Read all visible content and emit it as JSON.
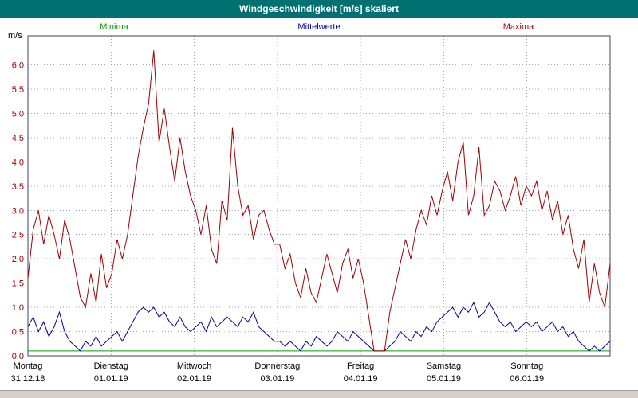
{
  "window": {
    "title": "Windgeschwindigkeit [m/s] skaliert"
  },
  "colors": {
    "title_bar": "#007070",
    "plot_border": "#404060",
    "grid": "#a0a0c0",
    "tick_label": "#a00000"
  },
  "chart_data": {
    "type": "line",
    "title": "Windgeschwindigkeit [m/s] skaliert",
    "unit_label": "m/s",
    "ylim": [
      0,
      6.6
    ],
    "grid": true,
    "legend_position": "top",
    "points_per_day": 16,
    "y_ticks": [
      {
        "value": 0.0,
        "label": "0,0"
      },
      {
        "value": 0.5,
        "label": "0,5"
      },
      {
        "value": 1.0,
        "label": "1,0"
      },
      {
        "value": 1.5,
        "label": "1,5"
      },
      {
        "value": 2.0,
        "label": "2,0"
      },
      {
        "value": 2.5,
        "label": "2,5"
      },
      {
        "value": 3.0,
        "label": "3,0"
      },
      {
        "value": 3.5,
        "label": "3,5"
      },
      {
        "value": 4.0,
        "label": "4,0"
      },
      {
        "value": 4.5,
        "label": "4,5"
      },
      {
        "value": 5.0,
        "label": "5,0"
      },
      {
        "value": 5.5,
        "label": "5,5"
      },
      {
        "value": 6.0,
        "label": "6,0"
      }
    ],
    "x_labels": [
      {
        "day": "Montag",
        "date": "31.12.18"
      },
      {
        "day": "Dienstag",
        "date": "01.01.19"
      },
      {
        "day": "Mittwoch",
        "date": "02.01.19"
      },
      {
        "day": "Donnerstag",
        "date": "03.01.19"
      },
      {
        "day": "Freitag",
        "date": "04.01.19"
      },
      {
        "day": "Samstag",
        "date": "05.01.19"
      },
      {
        "day": "Sonntag",
        "date": "06.01.19"
      }
    ],
    "series": [
      {
        "name": "Minima",
        "color": "#00a000",
        "values": [
          0.1,
          0.1,
          0.1,
          0.1,
          0.1,
          0.1,
          0.1,
          0.1,
          0.1,
          0.1,
          0.1,
          0.1,
          0.1,
          0.1,
          0.1,
          0.1,
          0.1,
          0.1,
          0.1,
          0.1,
          0.1,
          0.1,
          0.1,
          0.1,
          0.1,
          0.1,
          0.1,
          0.1,
          0.1,
          0.1,
          0.1,
          0.1,
          0.1,
          0.1,
          0.1,
          0.1,
          0.1,
          0.1,
          0.1,
          0.1,
          0.1,
          0.1,
          0.1,
          0.1,
          0.1,
          0.1,
          0.1,
          0.1,
          0.1,
          0.1,
          0.1,
          0.1,
          0.1,
          0.1,
          0.1,
          0.1,
          0.1,
          0.1,
          0.1,
          0.1,
          0.1,
          0.1,
          0.1,
          0.1,
          0.1,
          0.1,
          0.1,
          0.1,
          0.1,
          0.1,
          0.1,
          0.1,
          0.1,
          0.1,
          0.1,
          0.1,
          0.1,
          0.1,
          0.1,
          0.1,
          0.1,
          0.1,
          0.1,
          0.1,
          0.1,
          0.1,
          0.1,
          0.1,
          0.1,
          0.1,
          0.1,
          0.1,
          0.1,
          0.1,
          0.1,
          0.1,
          0.1,
          0.1,
          0.1,
          0.1,
          0.1,
          0.1,
          0.1,
          0.1,
          0.1,
          0.1,
          0.1,
          0.1,
          0.1,
          0.1,
          0.1,
          0.1
        ]
      },
      {
        "name": "Mittelwerte",
        "color": "#0000a0",
        "values": [
          0.6,
          0.8,
          0.5,
          0.7,
          0.4,
          0.6,
          0.9,
          0.5,
          0.3,
          0.2,
          0.1,
          0.3,
          0.2,
          0.4,
          0.2,
          0.3,
          0.4,
          0.5,
          0.3,
          0.5,
          0.7,
          0.9,
          1.0,
          0.9,
          1.0,
          0.8,
          0.9,
          0.7,
          0.6,
          0.8,
          0.6,
          0.5,
          0.6,
          0.7,
          0.5,
          0.8,
          0.6,
          0.7,
          0.8,
          0.7,
          0.6,
          0.8,
          0.7,
          0.9,
          0.6,
          0.5,
          0.4,
          0.3,
          0.3,
          0.2,
          0.3,
          0.2,
          0.1,
          0.3,
          0.2,
          0.4,
          0.3,
          0.2,
          0.3,
          0.5,
          0.4,
          0.3,
          0.5,
          0.4,
          0.3,
          0.2,
          0.1,
          0.1,
          0.1,
          0.2,
          0.3,
          0.5,
          0.4,
          0.3,
          0.5,
          0.4,
          0.6,
          0.5,
          0.7,
          0.8,
          0.9,
          1.0,
          0.8,
          1.0,
          0.9,
          1.1,
          0.8,
          0.9,
          1.1,
          0.9,
          0.7,
          0.6,
          0.7,
          0.5,
          0.6,
          0.7,
          0.6,
          0.7,
          0.5,
          0.6,
          0.7,
          0.5,
          0.6,
          0.4,
          0.5,
          0.3,
          0.2,
          0.1,
          0.2,
          0.1,
          0.2,
          0.3
        ]
      },
      {
        "name": "Maxima",
        "color": "#a00000",
        "values": [
          1.6,
          2.6,
          3.0,
          2.3,
          2.9,
          2.5,
          2.0,
          2.8,
          2.4,
          1.8,
          1.2,
          1.0,
          1.7,
          1.1,
          2.1,
          1.4,
          1.7,
          2.4,
          2.0,
          2.5,
          3.3,
          4.1,
          4.7,
          5.2,
          6.3,
          4.4,
          5.1,
          4.3,
          3.6,
          4.5,
          3.8,
          3.3,
          3.0,
          2.5,
          3.1,
          2.2,
          1.9,
          3.2,
          2.8,
          4.7,
          3.5,
          2.9,
          3.1,
          2.4,
          2.9,
          3.0,
          2.6,
          2.3,
          2.3,
          1.8,
          2.1,
          1.5,
          1.2,
          1.8,
          1.3,
          1.1,
          1.6,
          2.1,
          1.7,
          1.3,
          1.9,
          2.2,
          1.6,
          2.0,
          1.5,
          0.8,
          0.1,
          0.1,
          0.1,
          0.9,
          1.4,
          1.9,
          2.4,
          2.0,
          2.6,
          3.0,
          2.7,
          3.3,
          2.9,
          3.4,
          3.8,
          3.2,
          4.0,
          4.4,
          2.9,
          3.3,
          4.3,
          2.9,
          3.1,
          3.6,
          3.4,
          3.0,
          3.3,
          3.7,
          3.1,
          3.5,
          3.3,
          3.6,
          3.0,
          3.4,
          2.8,
          3.2,
          2.5,
          2.9,
          2.2,
          1.8,
          2.4,
          1.1,
          1.9,
          1.3,
          1.0,
          1.9
        ]
      }
    ]
  }
}
